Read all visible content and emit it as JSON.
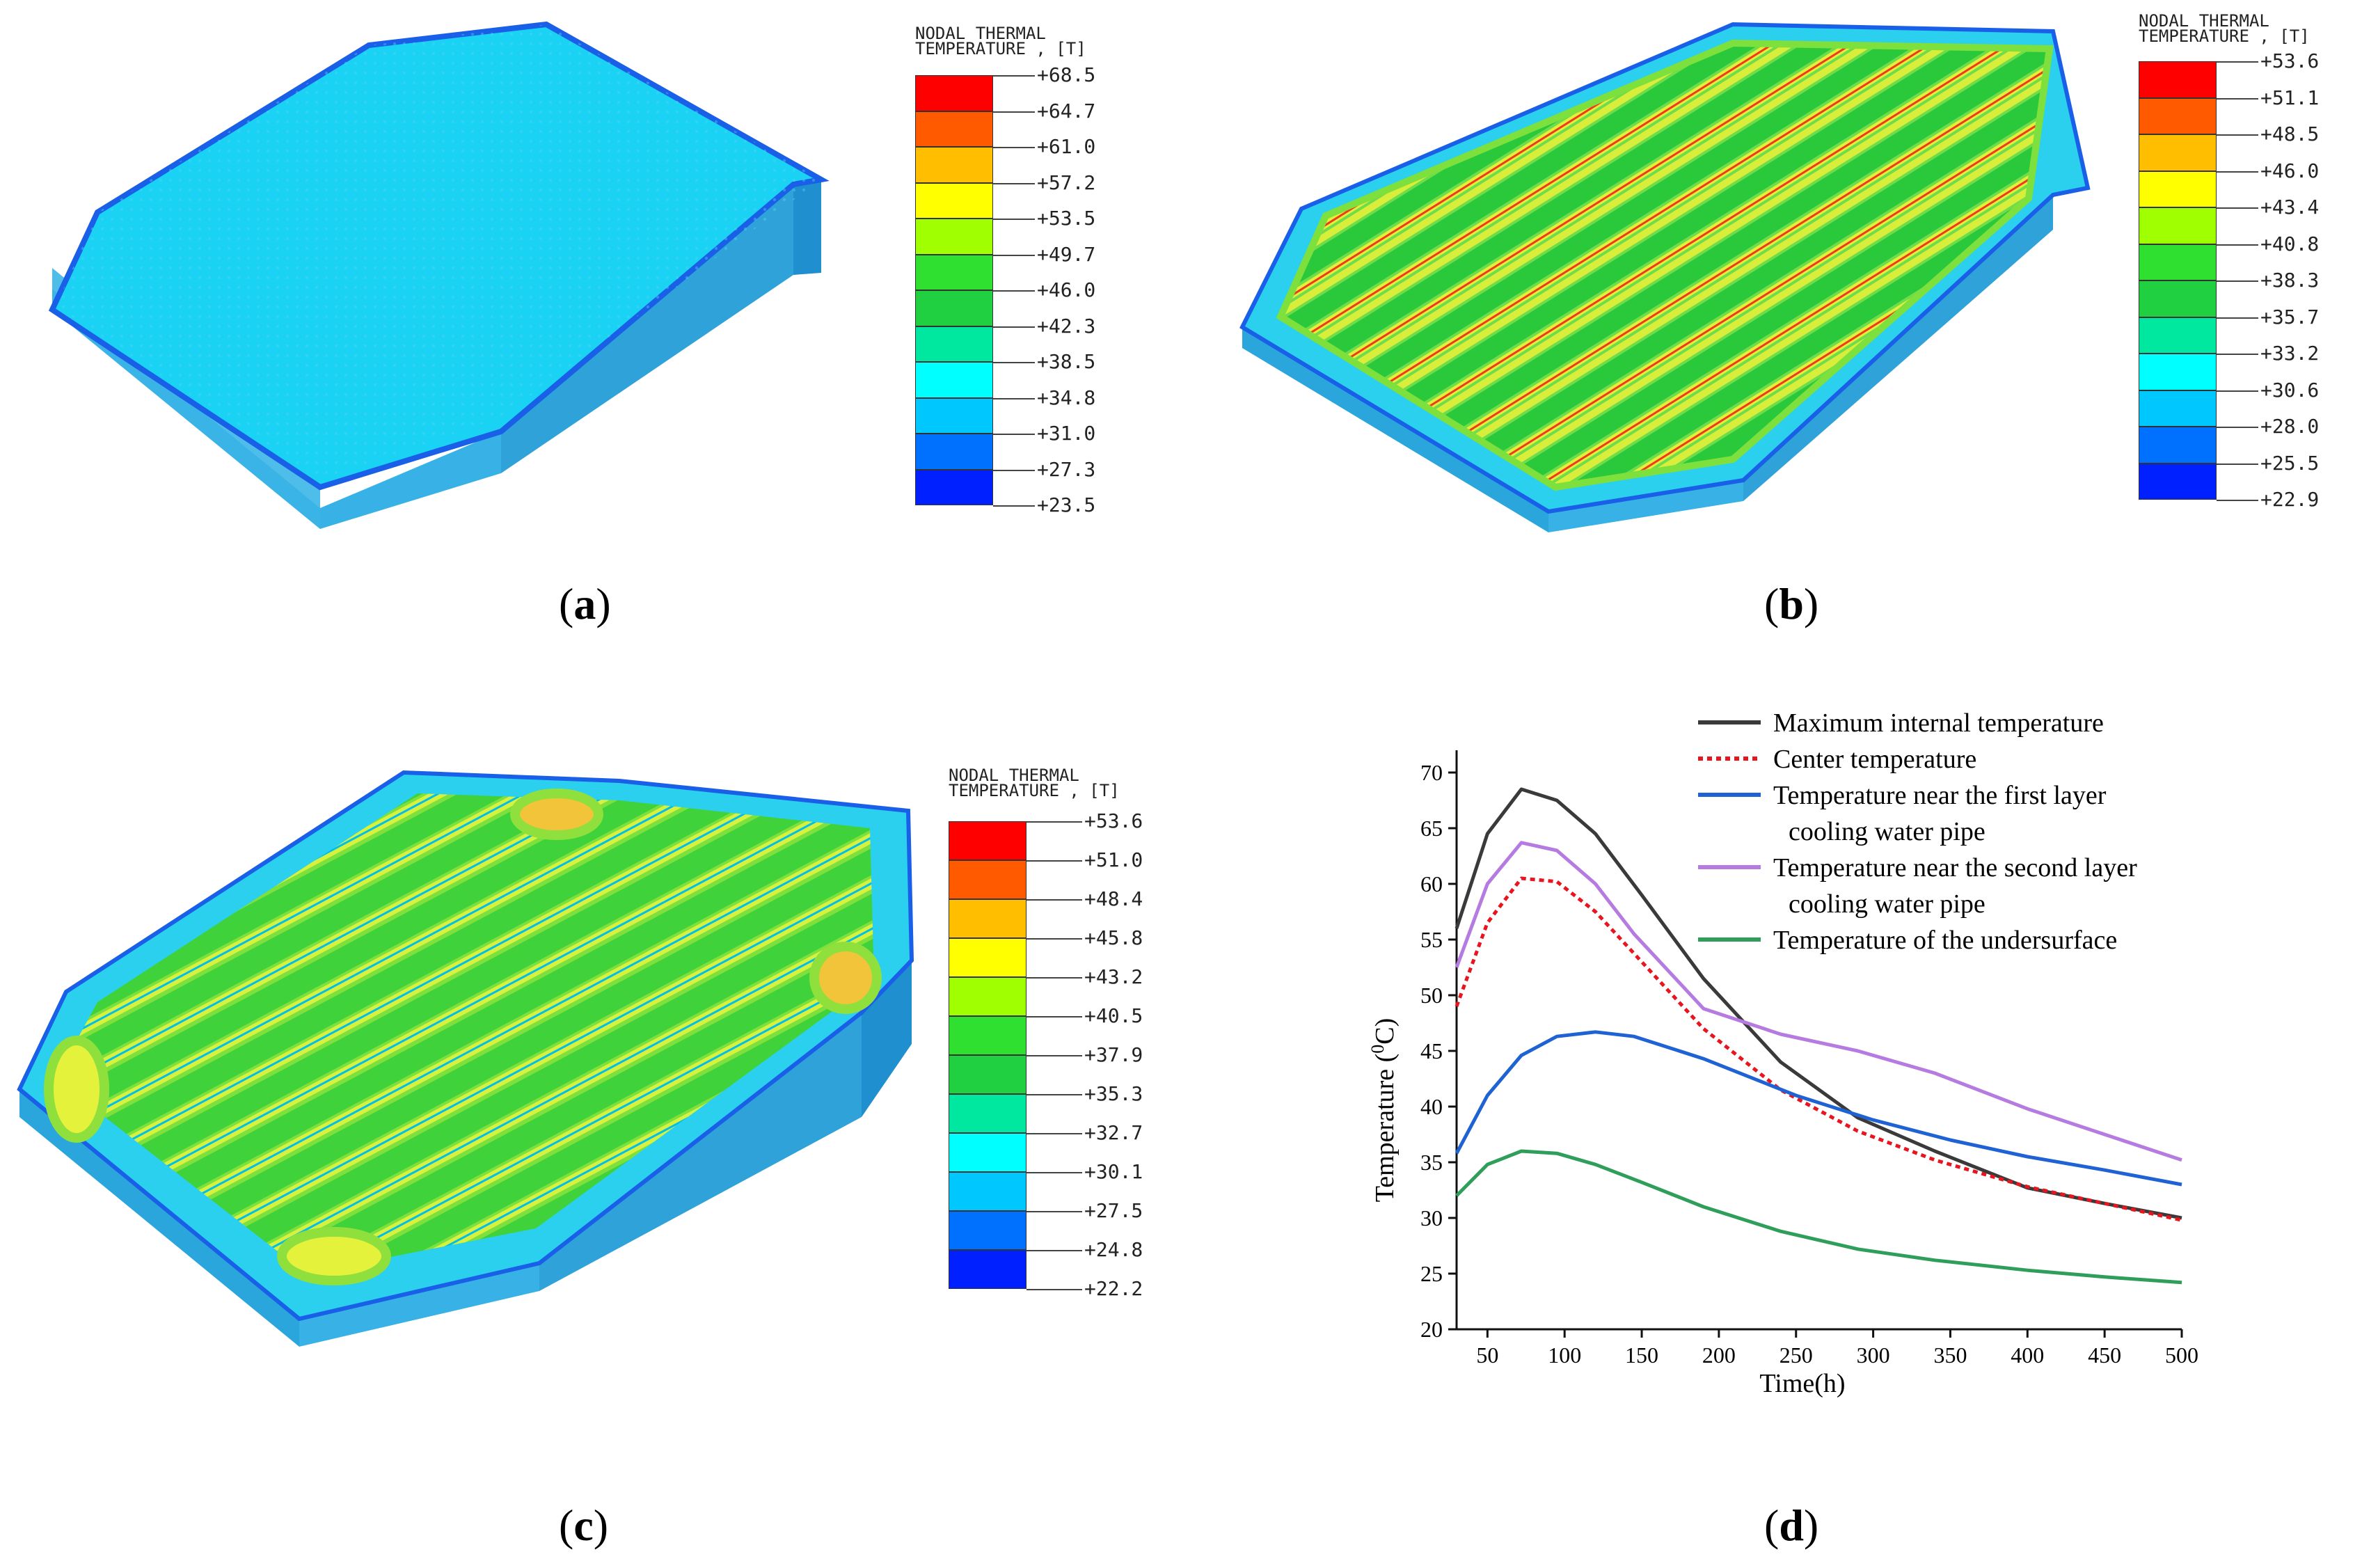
{
  "colorbars": [
    {
      "id": "a",
      "title_line1": "NODAL THERMAL",
      "title_line2": "TEMPERATURE , [T]",
      "labels": [
        "+68.5",
        "+64.7",
        "+61.0",
        "+57.2",
        "+53.5",
        "+49.7",
        "+46.0",
        "+42.3",
        "+38.5",
        "+34.8",
        "+31.0",
        "+27.3",
        "+23.5"
      ]
    },
    {
      "id": "b",
      "title_line1": "NODAL THERMAL",
      "title_line2": "TEMPERATURE , [T]",
      "labels": [
        "+53.6",
        "+51.1",
        "+48.5",
        "+46.0",
        "+43.4",
        "+40.8",
        "+38.3",
        "+35.7",
        "+33.2",
        "+30.6",
        "+28.0",
        "+25.5",
        "+22.9"
      ]
    },
    {
      "id": "c",
      "title_line1": "NODAL THERMAL",
      "title_line2": "TEMPERATURE , [T]",
      "labels": [
        "+53.6",
        "+51.0",
        "+48.4",
        "+45.8",
        "+43.2",
        "+40.5",
        "+37.9",
        "+35.3",
        "+32.7",
        "+30.1",
        "+27.5",
        "+24.8",
        "+22.2"
      ]
    }
  ],
  "swatch_colors": [
    "#ff0000",
    "#ff5a00",
    "#ffbe00",
    "#ffff00",
    "#a0ff00",
    "#30e030",
    "#20d040",
    "#00e8a0",
    "#00ffff",
    "#00c8ff",
    "#0070ff",
    "#0020ff"
  ],
  "captions": {
    "a": "a",
    "b": "b",
    "c": "c",
    "d": "d"
  },
  "chart_data": {
    "type": "line",
    "title": "",
    "xlabel": "Time(h)",
    "ylabel_main": "Temperature (",
    "ylabel_sup": "0",
    "ylabel_end": "C)",
    "xlim": [
      30,
      500
    ],
    "ylim": [
      20,
      72
    ],
    "xticks": [
      50,
      100,
      150,
      200,
      250,
      300,
      350,
      400,
      450,
      500
    ],
    "yticks": [
      20,
      25,
      30,
      35,
      40,
      45,
      50,
      55,
      60,
      65,
      70
    ],
    "legend_position": "top-right",
    "series": [
      {
        "name": "Maximum internal temperature",
        "color": "#3a3a3a",
        "dash": "solid",
        "x": [
          30,
          50,
          72,
          95,
          120,
          150,
          190,
          240,
          290,
          340,
          400,
          450,
          500
        ],
        "y": [
          56,
          64.5,
          68.5,
          67.5,
          64.5,
          59,
          51.5,
          44,
          39,
          36,
          32.7,
          31.3,
          30
        ]
      },
      {
        "name": "Center temperature",
        "color": "#e8141e",
        "dash": "dotted",
        "x": [
          30,
          50,
          72,
          95,
          120,
          150,
          190,
          240,
          290,
          340,
          400,
          450,
          500
        ],
        "y": [
          49,
          56.5,
          60.5,
          60.2,
          57.5,
          53,
          47,
          41.5,
          37.8,
          35.2,
          32.8,
          31.3,
          29.8
        ]
      },
      {
        "name": "Temperature near the first layer",
        "name_line2": "cooling water pipe",
        "color": "#1f62d4",
        "dash": "solid",
        "x": [
          30,
          50,
          72,
          95,
          120,
          145,
          190,
          250,
          300,
          350,
          400,
          450,
          500
        ],
        "y": [
          35.8,
          41,
          44.6,
          46.3,
          46.7,
          46.3,
          44.3,
          41,
          38.8,
          37,
          35.5,
          34.3,
          33
        ]
      },
      {
        "name": "Temperature near the second layer",
        "name_line2": "cooling water pipe",
        "color": "#b57be0",
        "dash": "solid",
        "x": [
          30,
          50,
          72,
          95,
          120,
          145,
          190,
          240,
          290,
          340,
          400,
          450,
          500
        ],
        "y": [
          52.5,
          60,
          63.7,
          63,
          60,
          55.5,
          48.8,
          46.5,
          45,
          43,
          39.8,
          37.5,
          35.2
        ]
      },
      {
        "name": "Temperature of the undersurface",
        "color": "#2e9e5a",
        "dash": "solid",
        "x": [
          30,
          50,
          72,
          95,
          120,
          150,
          190,
          240,
          290,
          340,
          400,
          450,
          500
        ],
        "y": [
          32,
          34.8,
          36,
          35.8,
          34.8,
          33.2,
          31,
          28.8,
          27.2,
          26.2,
          25.3,
          24.7,
          24.2
        ]
      }
    ]
  }
}
